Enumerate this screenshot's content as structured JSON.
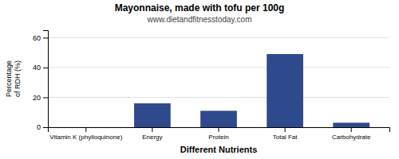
{
  "chart_data": {
    "type": "bar",
    "title": "Mayonnaise, made with tofu per 100g",
    "subtitle": "www.dietandfitnesstoday.com",
    "xlabel": "Different Nutrients",
    "ylabel": "Percentage\nof RDH (%)",
    "categories": [
      "Vitamin K (phylloquinone)",
      "Energy",
      "Protein",
      "Total Fat",
      "Carbohydrate"
    ],
    "values": [
      0,
      16,
      11,
      49,
      3
    ],
    "color": "#2e4a8c",
    "ylim": [
      0,
      65
    ],
    "yticks": [
      0,
      20,
      40,
      60
    ],
    "grid": true
  }
}
